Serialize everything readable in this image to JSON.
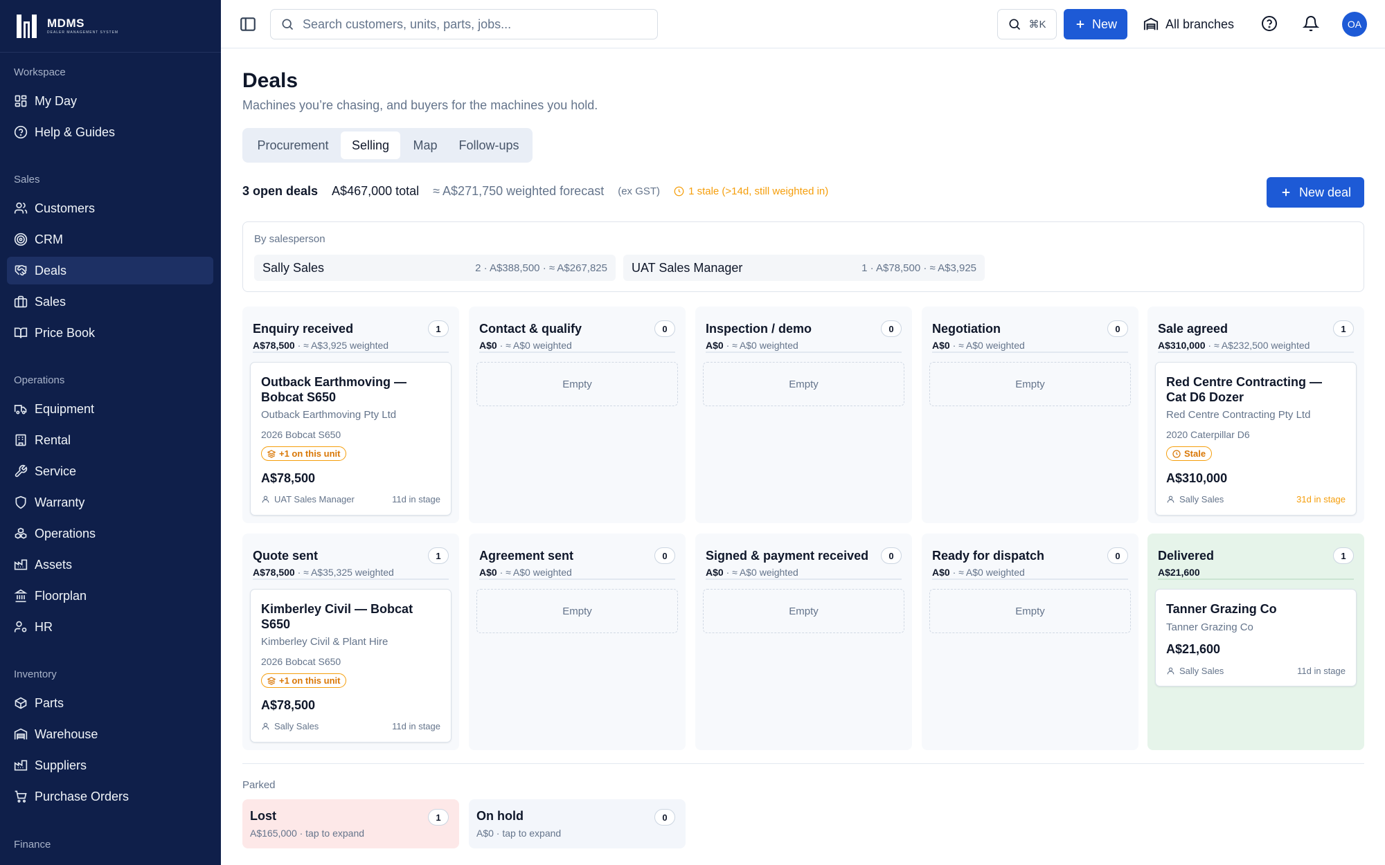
{
  "app": {
    "logo_text": "MDMS",
    "logo_subtext": "DEALER MANAGEMENT SYSTEM"
  },
  "sidebar": {
    "sections": [
      {
        "label": "Workspace",
        "items": [
          {
            "label": "My Day",
            "icon": "grid-icon"
          },
          {
            "label": "Help & Guides",
            "icon": "help-circle-icon"
          }
        ]
      },
      {
        "label": "Sales",
        "items": [
          {
            "label": "Customers",
            "icon": "users-icon"
          },
          {
            "label": "CRM",
            "icon": "target-icon"
          },
          {
            "label": "Deals",
            "icon": "handshake-icon",
            "active": true
          },
          {
            "label": "Sales",
            "icon": "briefcase-icon"
          },
          {
            "label": "Price Book",
            "icon": "book-icon"
          }
        ]
      },
      {
        "label": "Operations",
        "items": [
          {
            "label": "Equipment",
            "icon": "truck-icon"
          },
          {
            "label": "Rental",
            "icon": "building-icon"
          },
          {
            "label": "Service",
            "icon": "wrench-icon"
          },
          {
            "label": "Warranty",
            "icon": "shield-icon"
          },
          {
            "label": "Operations",
            "icon": "boxes-icon"
          },
          {
            "label": "Assets",
            "icon": "factory-icon"
          },
          {
            "label": "Floorplan",
            "icon": "landmark-icon"
          },
          {
            "label": "HR",
            "icon": "user-cog-icon"
          }
        ]
      },
      {
        "label": "Inventory",
        "items": [
          {
            "label": "Parts",
            "icon": "package-icon"
          },
          {
            "label": "Warehouse",
            "icon": "warehouse-icon"
          },
          {
            "label": "Suppliers",
            "icon": "factory-icon"
          },
          {
            "label": "Purchase Orders",
            "icon": "cart-icon"
          }
        ]
      },
      {
        "label": "Finance",
        "items": []
      }
    ]
  },
  "topbar": {
    "search_placeholder": "Search customers, units, parts, jobs...",
    "shortcut": "⌘K",
    "new_label": "New",
    "branch_label": "All branches",
    "avatar_initials": "OA"
  },
  "page": {
    "title": "Deals",
    "subtitle": "Machines you’re chasing, and buyers for the machines you hold.",
    "tabs": [
      "Procurement",
      "Selling",
      "Map",
      "Follow-ups"
    ],
    "active_tab": "Selling",
    "stats": {
      "open_deals": "3 open deals",
      "total": "A$467,000 total",
      "forecast": "≈ A$271,750 weighted forecast",
      "gst": "(ex GST)",
      "stale": "1 stale (>14d, still weighted in)"
    },
    "new_deal_label": "New deal",
    "by_salesperson": {
      "label": "By salesperson",
      "people": [
        {
          "name": "Sally Sales",
          "summary": "2 · A$388,500 · ≈ A$267,825"
        },
        {
          "name": "UAT Sales Manager",
          "summary": "1 · A$78,500 · ≈ A$3,925"
        }
      ]
    }
  },
  "board": {
    "columns": [
      {
        "title": "Enquiry received",
        "count": "1",
        "amount": "A$78,500",
        "weighted": " · ≈ A$3,925 weighted",
        "empty": false
      },
      {
        "title": "Contact & qualify",
        "count": "0",
        "amount": "A$0",
        "weighted": " · ≈ A$0 weighted",
        "empty": true
      },
      {
        "title": "Inspection / demo",
        "count": "0",
        "amount": "A$0",
        "weighted": " · ≈ A$0 weighted",
        "empty": true
      },
      {
        "title": "Negotiation",
        "count": "0",
        "amount": "A$0",
        "weighted": " · ≈ A$0 weighted",
        "empty": true
      },
      {
        "title": "Sale agreed",
        "count": "1",
        "amount": "A$310,000",
        "weighted": " · ≈ A$232,500 weighted",
        "empty": false
      },
      {
        "title": "Quote sent",
        "count": "1",
        "amount": "A$78,500",
        "weighted": " · ≈ A$35,325 weighted",
        "empty": false
      },
      {
        "title": "Agreement sent",
        "count": "0",
        "amount": "A$0",
        "weighted": " · ≈ A$0 weighted",
        "empty": true
      },
      {
        "title": "Signed & payment received",
        "count": "0",
        "amount": "A$0",
        "weighted": " · ≈ A$0 weighted",
        "empty": true
      },
      {
        "title": "Ready for dispatch",
        "count": "0",
        "amount": "A$0",
        "weighted": " · ≈ A$0 weighted",
        "empty": true
      },
      {
        "title": "Delivered",
        "count": "1",
        "amount": "A$21,600",
        "weighted": "",
        "empty": false
      }
    ],
    "empty_label": "Empty",
    "cards": {
      "enquiry": {
        "title": "Outback Earthmoving — Bobcat S650",
        "customer": "Outback Earthmoving Pty Ltd",
        "unit": "2026 Bobcat S650",
        "badge": "+1 on this unit",
        "price": "A$78,500",
        "owner": "UAT Sales Manager",
        "age": "11d in stage"
      },
      "sale_agreed": {
        "title": "Red Centre Contracting — Cat D6 Dozer",
        "customer": "Red Centre Contracting Pty Ltd",
        "unit": "2020 Caterpillar D6",
        "badge": "Stale",
        "price": "A$310,000",
        "owner": "Sally Sales",
        "age": "31d in stage"
      },
      "quote": {
        "title": "Kimberley Civil — Bobcat S650",
        "customer": "Kimberley Civil & Plant Hire",
        "unit": "2026 Bobcat S650",
        "badge": "+1 on this unit",
        "price": "A$78,500",
        "owner": "Sally Sales",
        "age": "11d in stage"
      },
      "delivered": {
        "title": "Tanner Grazing Co",
        "customer": "Tanner Grazing Co",
        "price": "A$21,600",
        "owner": "Sally Sales",
        "age": "11d in stage"
      }
    }
  },
  "parked": {
    "label": "Parked",
    "items": [
      {
        "title": "Lost",
        "count": "1",
        "summary": "A$165,000 · tap to expand"
      },
      {
        "title": "On hold",
        "count": "0",
        "summary": "A$0 · tap to expand"
      }
    ]
  },
  "colors": {
    "sidebar": "#0f1f4a",
    "accent": "#1d5ad6",
    "stale": "#f59e0b",
    "delivered_bg": "#e6f4ea",
    "lost_bg": "#fde8e8"
  }
}
